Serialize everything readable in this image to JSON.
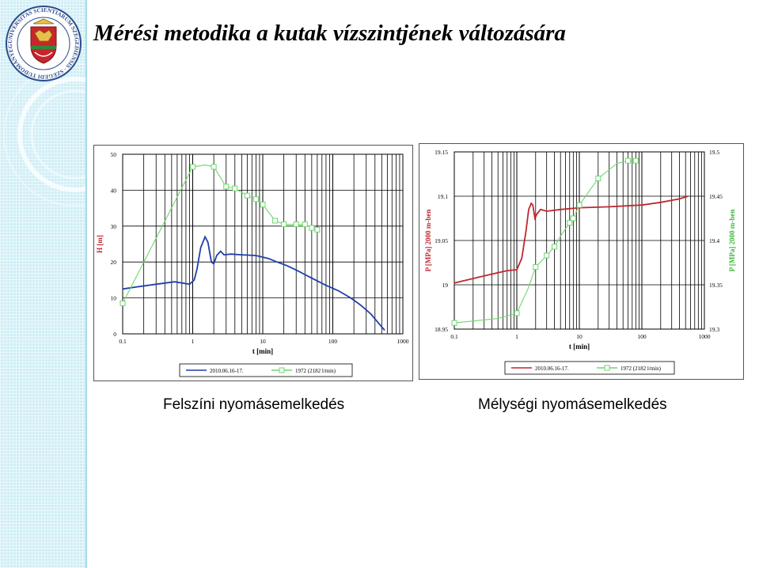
{
  "slide": {
    "title": "Mérési metodika a kutak vízszintjének változására",
    "caption_left": "Felszíni nyomásemelkedés",
    "caption_right": "Mélységi nyomásemelkedés",
    "logo_text": "UNIVERSITAS SCIENTIARUM SZEGEDIENSIS · SZEGEDI TUDOMÁNYEGYETEM"
  },
  "colors": {
    "sidebar": "#cfeef6",
    "series_2010_left": "#1f3fa8",
    "series_2010_right": "#c0272d",
    "series_1972": "#6fd66f",
    "grid": "#000000",
    "left_axis_label": "#c0272d",
    "right_axis_label": "#3cb83c"
  },
  "chart_data": [
    {
      "type": "line",
      "x_scale": "log",
      "xlim": [
        0.1,
        1000
      ],
      "x_ticks": [
        "0.1",
        "1",
        "10",
        "100",
        "1000"
      ],
      "xlabel": "t [min]",
      "ylabel": "H [m]",
      "ylim": [
        0,
        50
      ],
      "y_ticks": [
        "0",
        "10",
        "20",
        "30",
        "40",
        "50"
      ],
      "grid": true,
      "legend": "bottom-right",
      "series": [
        {
          "name": "2010.06.16-17.",
          "color": "#1f3fa8",
          "marker": "none",
          "points": [
            [
              0.1,
              12.5
            ],
            [
              0.15,
              13
            ],
            [
              0.3,
              13.8
            ],
            [
              0.55,
              14.5
            ],
            [
              0.9,
              13.8
            ],
            [
              1.05,
              15
            ],
            [
              1.15,
              18
            ],
            [
              1.3,
              24
            ],
            [
              1.5,
              27
            ],
            [
              1.65,
              25.5
            ],
            [
              1.85,
              20
            ],
            [
              2.0,
              19.5
            ],
            [
              2.2,
              21.8
            ],
            [
              2.5,
              23
            ],
            [
              2.8,
              22
            ],
            [
              3.5,
              22.2
            ],
            [
              5,
              22
            ],
            [
              8,
              21.8
            ],
            [
              12,
              21
            ],
            [
              16,
              20
            ],
            [
              22,
              19
            ],
            [
              32,
              17.5
            ],
            [
              50,
              15.5
            ],
            [
              80,
              13.5
            ],
            [
              120,
              12
            ],
            [
              180,
              10
            ],
            [
              250,
              8
            ],
            [
              350,
              5.5
            ],
            [
              450,
              3
            ],
            [
              550,
              1
            ]
          ]
        },
        {
          "name": "1972 (2182 l/min)",
          "color": "#6fd66f",
          "marker": "square",
          "points": [
            [
              0.1,
              8.5
            ],
            [
              1,
              46.5
            ],
            [
              1.5,
              47
            ],
            [
              2,
              46.5
            ],
            [
              3,
              41
            ],
            [
              4,
              40.5
            ],
            [
              6,
              38.5
            ],
            [
              8,
              37.5
            ],
            [
              10,
              36
            ],
            [
              15,
              31.5
            ],
            [
              20,
              30.5
            ],
            [
              30,
              30.5
            ],
            [
              40,
              30.5
            ],
            [
              50,
              29.5
            ],
            [
              60,
              29
            ]
          ],
          "markers_at": [
            [
              0.1,
              8.5
            ],
            [
              1,
              46.5
            ],
            [
              2,
              46.5
            ],
            [
              3,
              41
            ],
            [
              4,
              40.5
            ],
            [
              6,
              38.5
            ],
            [
              8,
              37.5
            ],
            [
              10,
              36
            ],
            [
              15,
              31.5
            ],
            [
              20,
              30.5
            ],
            [
              30,
              30.5
            ],
            [
              40,
              30.5
            ],
            [
              50,
              29.5
            ],
            [
              60,
              29
            ]
          ]
        }
      ]
    },
    {
      "type": "line",
      "x_scale": "log",
      "xlim": [
        0.1,
        1000
      ],
      "x_ticks": [
        "0.1",
        "1",
        "10",
        "100",
        "1000"
      ],
      "xlabel": "t [min]",
      "ylabel": "P [MPa] 2000 m-ben",
      "ylim": [
        18.95,
        19.15
      ],
      "y_ticks": [
        "18.95",
        "19",
        "19.05",
        "19.1",
        "19.15"
      ],
      "y2label": "P [MPa] 2000 m-ben",
      "y2lim": [
        19.3,
        19.5
      ],
      "y2_ticks": [
        "19.3",
        "19.35",
        "19.4",
        "19.45",
        "19.5"
      ],
      "grid": true,
      "legend": "bottom-right",
      "series": [
        {
          "name": "2010.06.16-17.",
          "color": "#c0272d",
          "axis": "left",
          "marker": "none",
          "points": [
            [
              0.1,
              19.002
            ],
            [
              0.3,
              19.01
            ],
            [
              0.7,
              19.016
            ],
            [
              1.0,
              19.017
            ],
            [
              1.2,
              19.03
            ],
            [
              1.4,
              19.06
            ],
            [
              1.55,
              19.085
            ],
            [
              1.7,
              19.092
            ],
            [
              1.8,
              19.09
            ],
            [
              1.95,
              19.075
            ],
            [
              2.1,
              19.08
            ],
            [
              2.4,
              19.085
            ],
            [
              3,
              19.083
            ],
            [
              5,
              19.085
            ],
            [
              10,
              19.087
            ],
            [
              30,
              19.088
            ],
            [
              100,
              19.09
            ],
            [
              200,
              19.093
            ],
            [
              400,
              19.097
            ],
            [
              550,
              19.1
            ]
          ]
        },
        {
          "name": "1972 (2182 l/min)",
          "color": "#6fd66f",
          "axis": "right",
          "marker": "square",
          "points": [
            [
              0.1,
              19.307
            ],
            [
              0.5,
              19.312
            ],
            [
              1,
              19.318
            ],
            [
              1.5,
              19.345
            ],
            [
              2,
              19.37
            ],
            [
              3,
              19.383
            ],
            [
              4,
              19.393
            ],
            [
              5,
              19.405
            ],
            [
              7,
              19.42
            ],
            [
              8,
              19.425
            ],
            [
              10,
              19.44
            ],
            [
              20,
              19.47
            ],
            [
              40,
              19.487
            ],
            [
              60,
              19.49
            ],
            [
              80,
              19.49
            ]
          ],
          "markers_at": [
            [
              0.1,
              19.307
            ],
            [
              1,
              19.318
            ],
            [
              2,
              19.37
            ],
            [
              3,
              19.383
            ],
            [
              4,
              19.393
            ],
            [
              7,
              19.42
            ],
            [
              8,
              19.425
            ],
            [
              10,
              19.44
            ],
            [
              20,
              19.47
            ],
            [
              60,
              19.49
            ],
            [
              80,
              19.49
            ]
          ]
        }
      ]
    }
  ]
}
